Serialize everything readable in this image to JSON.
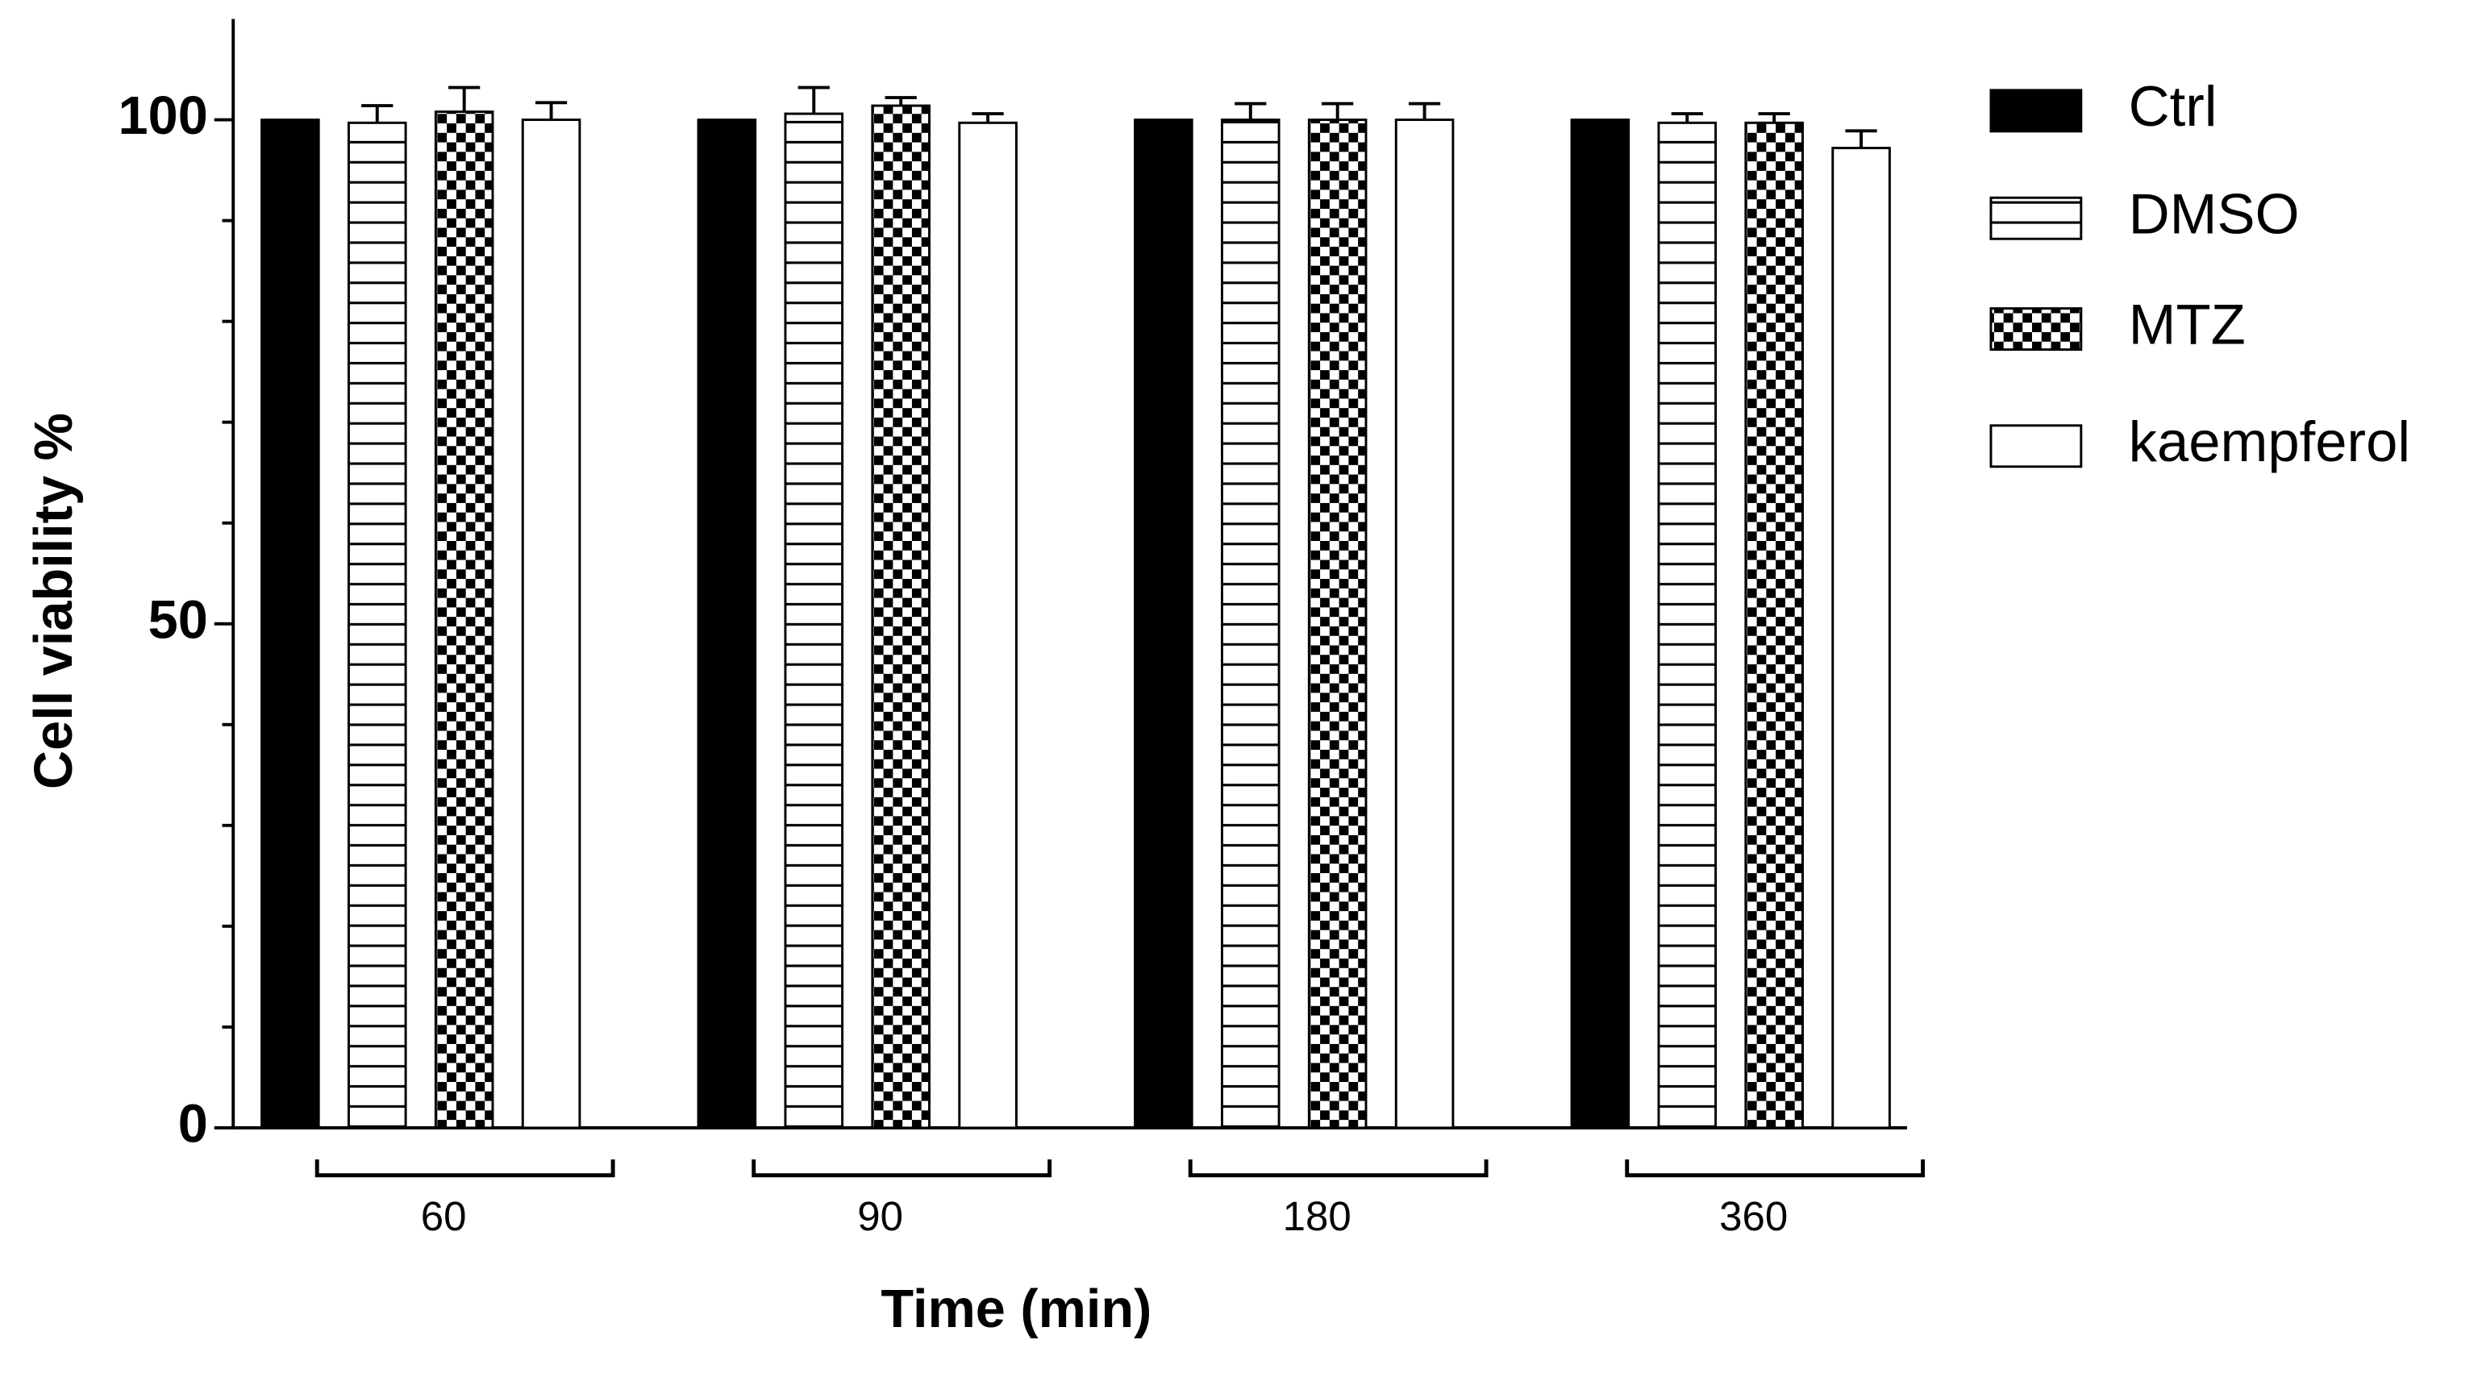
{
  "chart_data": {
    "type": "bar",
    "y_label": "Cell viability %",
    "x_label": "Time (min)",
    "categories": [
      "60",
      "90",
      "180",
      "360"
    ],
    "series": [
      {
        "name": "Ctrl",
        "color": "#000000",
        "pattern": "solid",
        "values": [
          100,
          100,
          100,
          100
        ]
      },
      {
        "name": "DMSO",
        "color": "#000000",
        "pattern": "hstripes",
        "values": [
          99.7,
          100.6,
          100,
          99.7
        ],
        "errors": [
          1.7,
          2.6,
          1.6,
          0.9
        ]
      },
      {
        "name": "MTZ",
        "color": "#000000",
        "pattern": "checker",
        "values": [
          100.8,
          101.4,
          100,
          99.7
        ],
        "errors": [
          2.4,
          0.8,
          1.6,
          0.9
        ]
      },
      {
        "name": "kaempferol",
        "color": "#000000",
        "pattern": "none",
        "values": [
          100,
          99.7,
          100,
          97.2
        ],
        "errors": [
          1.7,
          0.9,
          1.6,
          1.7
        ]
      }
    ],
    "ylim": [
      0,
      110
    ],
    "yticks": [
      0,
      50,
      100
    ],
    "minor_yticks": [
      10,
      20,
      30,
      40,
      60,
      70,
      80,
      90
    ],
    "legend": "right"
  }
}
